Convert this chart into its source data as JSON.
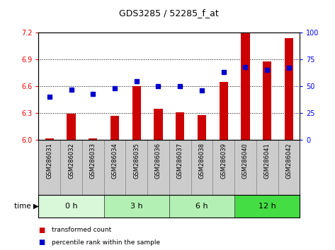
{
  "title": "GDS3285 / 52285_f_at",
  "samples": [
    "GSM286031",
    "GSM286032",
    "GSM286033",
    "GSM286034",
    "GSM286035",
    "GSM286036",
    "GSM286037",
    "GSM286038",
    "GSM286039",
    "GSM286040",
    "GSM286041",
    "GSM286042"
  ],
  "transformed_count": [
    6.02,
    6.29,
    6.02,
    6.27,
    6.6,
    6.35,
    6.31,
    6.28,
    6.65,
    7.19,
    6.88,
    7.14
  ],
  "percentile_rank": [
    40,
    47,
    43,
    48,
    55,
    50,
    50,
    46,
    63,
    68,
    65,
    67
  ],
  "groups": [
    {
      "label": "0 h",
      "start": 0,
      "end": 3,
      "color": "#d9f7d9"
    },
    {
      "label": "3 h",
      "start": 3,
      "end": 6,
      "color": "#b3f0b3"
    },
    {
      "label": "6 h",
      "start": 6,
      "end": 9,
      "color": "#b3f0b3"
    },
    {
      "label": "12 h",
      "start": 9,
      "end": 12,
      "color": "#44dd44"
    }
  ],
  "ylim_left": [
    6.0,
    7.2
  ],
  "ylim_right": [
    0,
    100
  ],
  "yticks_left": [
    6.0,
    6.3,
    6.6,
    6.9,
    7.2
  ],
  "yticks_right": [
    0,
    25,
    50,
    75,
    100
  ],
  "bar_color": "#cc0000",
  "dot_color": "#0000cc",
  "bar_bottom": 6.0,
  "bg_color": "#ffffff",
  "tick_area_bg": "#cccccc",
  "legend_bar_label": "transformed count",
  "legend_dot_label": "percentile rank within the sample"
}
